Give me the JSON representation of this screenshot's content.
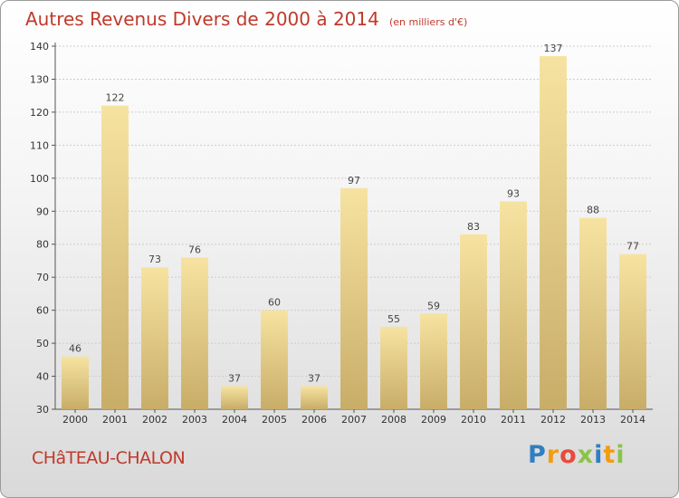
{
  "title": "Autres Revenus Divers de 2000 à 2014",
  "subtitle": "(en milliers d'€)",
  "location": "CHâTEAU-CHALON",
  "logo": {
    "text": "Proxiti",
    "letters": [
      "P",
      "r",
      "o",
      "x",
      "i",
      "t",
      "i"
    ],
    "colors": [
      "#2f7fc1",
      "#f39c12",
      "#e74c3c",
      "#8bc34a",
      "#2f7fc1",
      "#f39c12",
      "#8bc34a"
    ]
  },
  "colors": {
    "title": "#c0392b",
    "bar_light": "#f7e3a1",
    "bar_dark": "#c8ad68",
    "grid": "#cccccc"
  },
  "chart_data": {
    "type": "bar",
    "categories": [
      "2000",
      "2001",
      "2002",
      "2003",
      "2004",
      "2005",
      "2006",
      "2007",
      "2008",
      "2009",
      "2010",
      "2011",
      "2012",
      "2013",
      "2014"
    ],
    "values": [
      46,
      122,
      73,
      76,
      37,
      60,
      37,
      97,
      55,
      59,
      83,
      93,
      137,
      88,
      77
    ],
    "data_labels": [
      "46",
      "122",
      "73",
      "76",
      "37",
      "60",
      "37",
      "97",
      "55",
      "59",
      "83",
      "93",
      "137",
      "88",
      "77"
    ],
    "yticks": [
      "30",
      "40",
      "50",
      "60",
      "70",
      "80",
      "90",
      "100",
      "110",
      "120",
      "130",
      "140"
    ],
    "ylim": [
      30,
      140
    ],
    "grid": true,
    "xlabel": "",
    "ylabel": ""
  }
}
